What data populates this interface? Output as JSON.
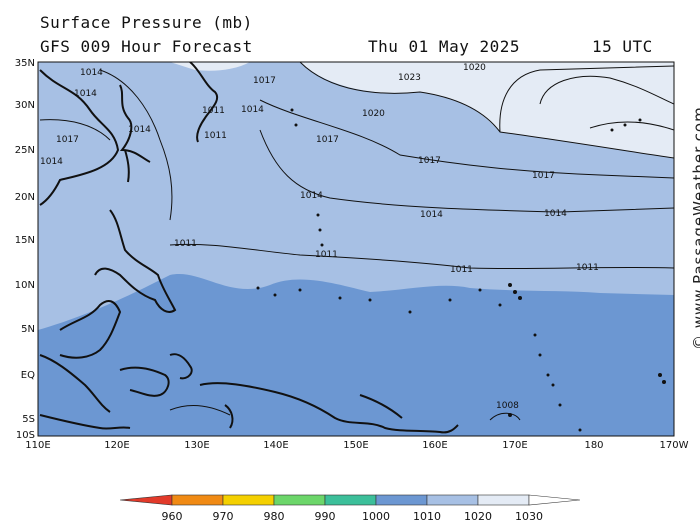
{
  "header": {
    "title": "Surface Pressure (mb)",
    "subtitle": "GFS 009 Hour Forecast",
    "date": "Thu 01 May 2025",
    "time": "15 UTC"
  },
  "watermark": "© www.PassageWeather.com",
  "axes": {
    "x_ticks": [
      "110E",
      "120E",
      "130E",
      "140E",
      "150E",
      "160E",
      "170E",
      "180",
      "170W"
    ],
    "y_ticks": [
      "35N",
      "30N",
      "25N",
      "20N",
      "15N",
      "10N",
      "5N",
      "EQ",
      "5S",
      "10S"
    ]
  },
  "isobar_labels": [
    "1023",
    "1020",
    "1020",
    "1017",
    "1017",
    "1017",
    "1014",
    "1014",
    "1014",
    "1011",
    "1011",
    "1011",
    "1011",
    "1008",
    "1014",
    "1014",
    "1011",
    "1011",
    "1017",
    "1014",
    "1017",
    "1014",
    "1014"
  ],
  "legend": {
    "values": [
      "960",
      "970",
      "980",
      "990",
      "1000",
      "1010",
      "1020",
      "1030"
    ],
    "colors": [
      "#e23a2a",
      "#f08a14",
      "#f4d000",
      "#6cd66a",
      "#3cbf9a",
      "#6c97d2",
      "#a7c0e4",
      "#e4ebf5"
    ]
  },
  "colors": {
    "band_low": "#6c97d2",
    "band_mid": "#a7c0e4",
    "band_high": "#e4ebf5",
    "land": "#111111"
  }
}
